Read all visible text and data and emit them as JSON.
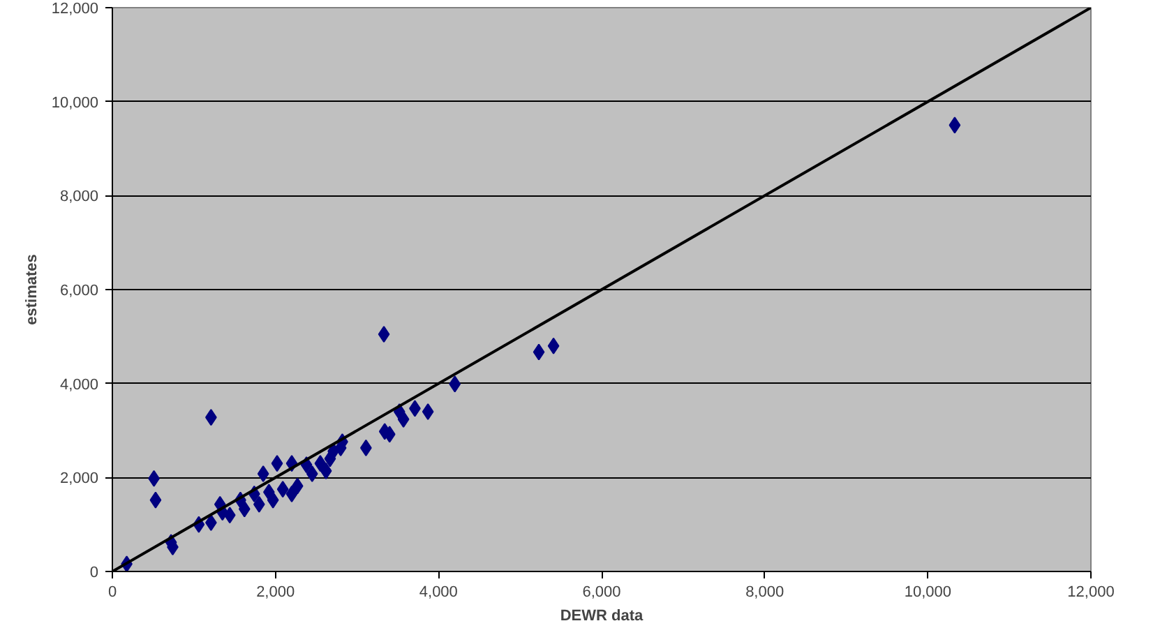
{
  "chart_data": {
    "type": "scatter",
    "xlabel": "DEWR data",
    "ylabel": "estimates",
    "marker": "diamond",
    "grid": "y",
    "xlim": [
      0,
      12000
    ],
    "ylim": [
      0,
      12000
    ],
    "xticks": [
      0,
      {
        "value": 2000,
        "label": "2,000"
      },
      {
        "value": 4000,
        "label": "4,000"
      },
      {
        "value": 6000,
        "label": "6,000"
      },
      {
        "value": 8000,
        "label": "8,000"
      },
      {
        "value": 10000,
        "label": "10,000"
      },
      {
        "value": 12000,
        "label": "12,000"
      }
    ],
    "yticks": [
      0,
      {
        "value": 2000,
        "label": "2,000"
      },
      {
        "value": 4000,
        "label": "4,000"
      },
      {
        "value": 6000,
        "label": "6,000"
      },
      {
        "value": 8000,
        "label": "8,000"
      },
      {
        "value": 10000,
        "label": "10,000"
      },
      {
        "value": 12000,
        "label": "12,000"
      }
    ],
    "series": [
      {
        "color": "#000080",
        "x": [
          176,
          510,
          530,
          720,
          740,
          1060,
          1210,
          1320,
          1350,
          1850,
          2020,
          2200,
          2380,
          2620,
          1570,
          1740,
          1920,
          2090,
          2270,
          1440,
          1620,
          1800,
          1970,
          2200,
          2450,
          2670,
          2800,
          2550,
          1210,
          3330,
          3870,
          3710,
          3570,
          3520,
          3400,
          3340,
          3110,
          2820,
          2710,
          4200,
          5230,
          5410,
          10330
        ],
        "values": [
          160,
          1980,
          1520,
          620,
          520,
          1000,
          1040,
          1430,
          1260,
          2080,
          2300,
          2300,
          2270,
          2140,
          1520,
          1650,
          1690,
          1750,
          1820,
          1200,
          1330,
          1430,
          1520,
          1650,
          2080,
          2400,
          2630,
          2300,
          3280,
          5050,
          3400,
          3470,
          3240,
          3400,
          2920,
          2980,
          2630,
          2760,
          2560,
          3990,
          4670,
          4800,
          9500
        ]
      },
      {
        "type": "line",
        "marker": "none",
        "color": "#000000",
        "x": [
          0,
          12000
        ],
        "values": [
          0,
          12000
        ]
      }
    ]
  }
}
